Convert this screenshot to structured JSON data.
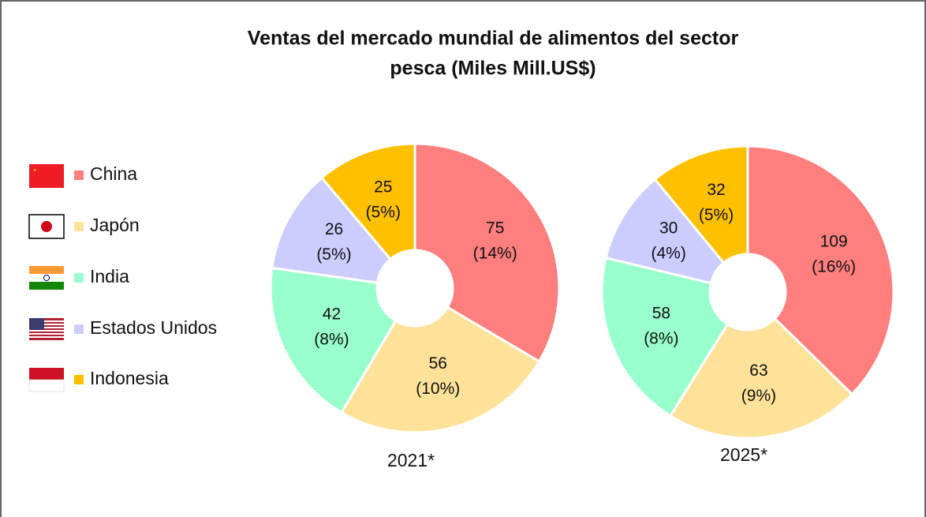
{
  "chart_data": {
    "type": "pie",
    "title": [
      "Ventas del mercado mundial de alimentos del sector",
      "pesca (Miles Mill.US$)"
    ],
    "categories": [
      "China",
      "Japón",
      "India",
      "Estados Unidos",
      "Indonesia"
    ],
    "colors": [
      "#ff7f7f",
      "#ffe299",
      "#99ffcc",
      "#ccccff",
      "#ffc000"
    ],
    "legend": "left",
    "pies": [
      {
        "label": "2021*",
        "values": [
          75,
          56,
          42,
          26,
          25
        ],
        "shares": [
          14,
          10,
          8,
          5,
          5
        ],
        "share_labels": [
          "(14%)",
          "(10%)",
          "(8%)",
          "(5%)",
          "(5%)"
        ]
      },
      {
        "label": "2025*",
        "values": [
          109,
          63,
          58,
          30,
          32
        ],
        "shares": [
          16,
          9,
          8,
          4,
          5
        ],
        "share_labels": [
          "(16%)",
          "(9%)",
          "(8%)",
          "(4%)",
          "(5%)"
        ]
      }
    ]
  }
}
